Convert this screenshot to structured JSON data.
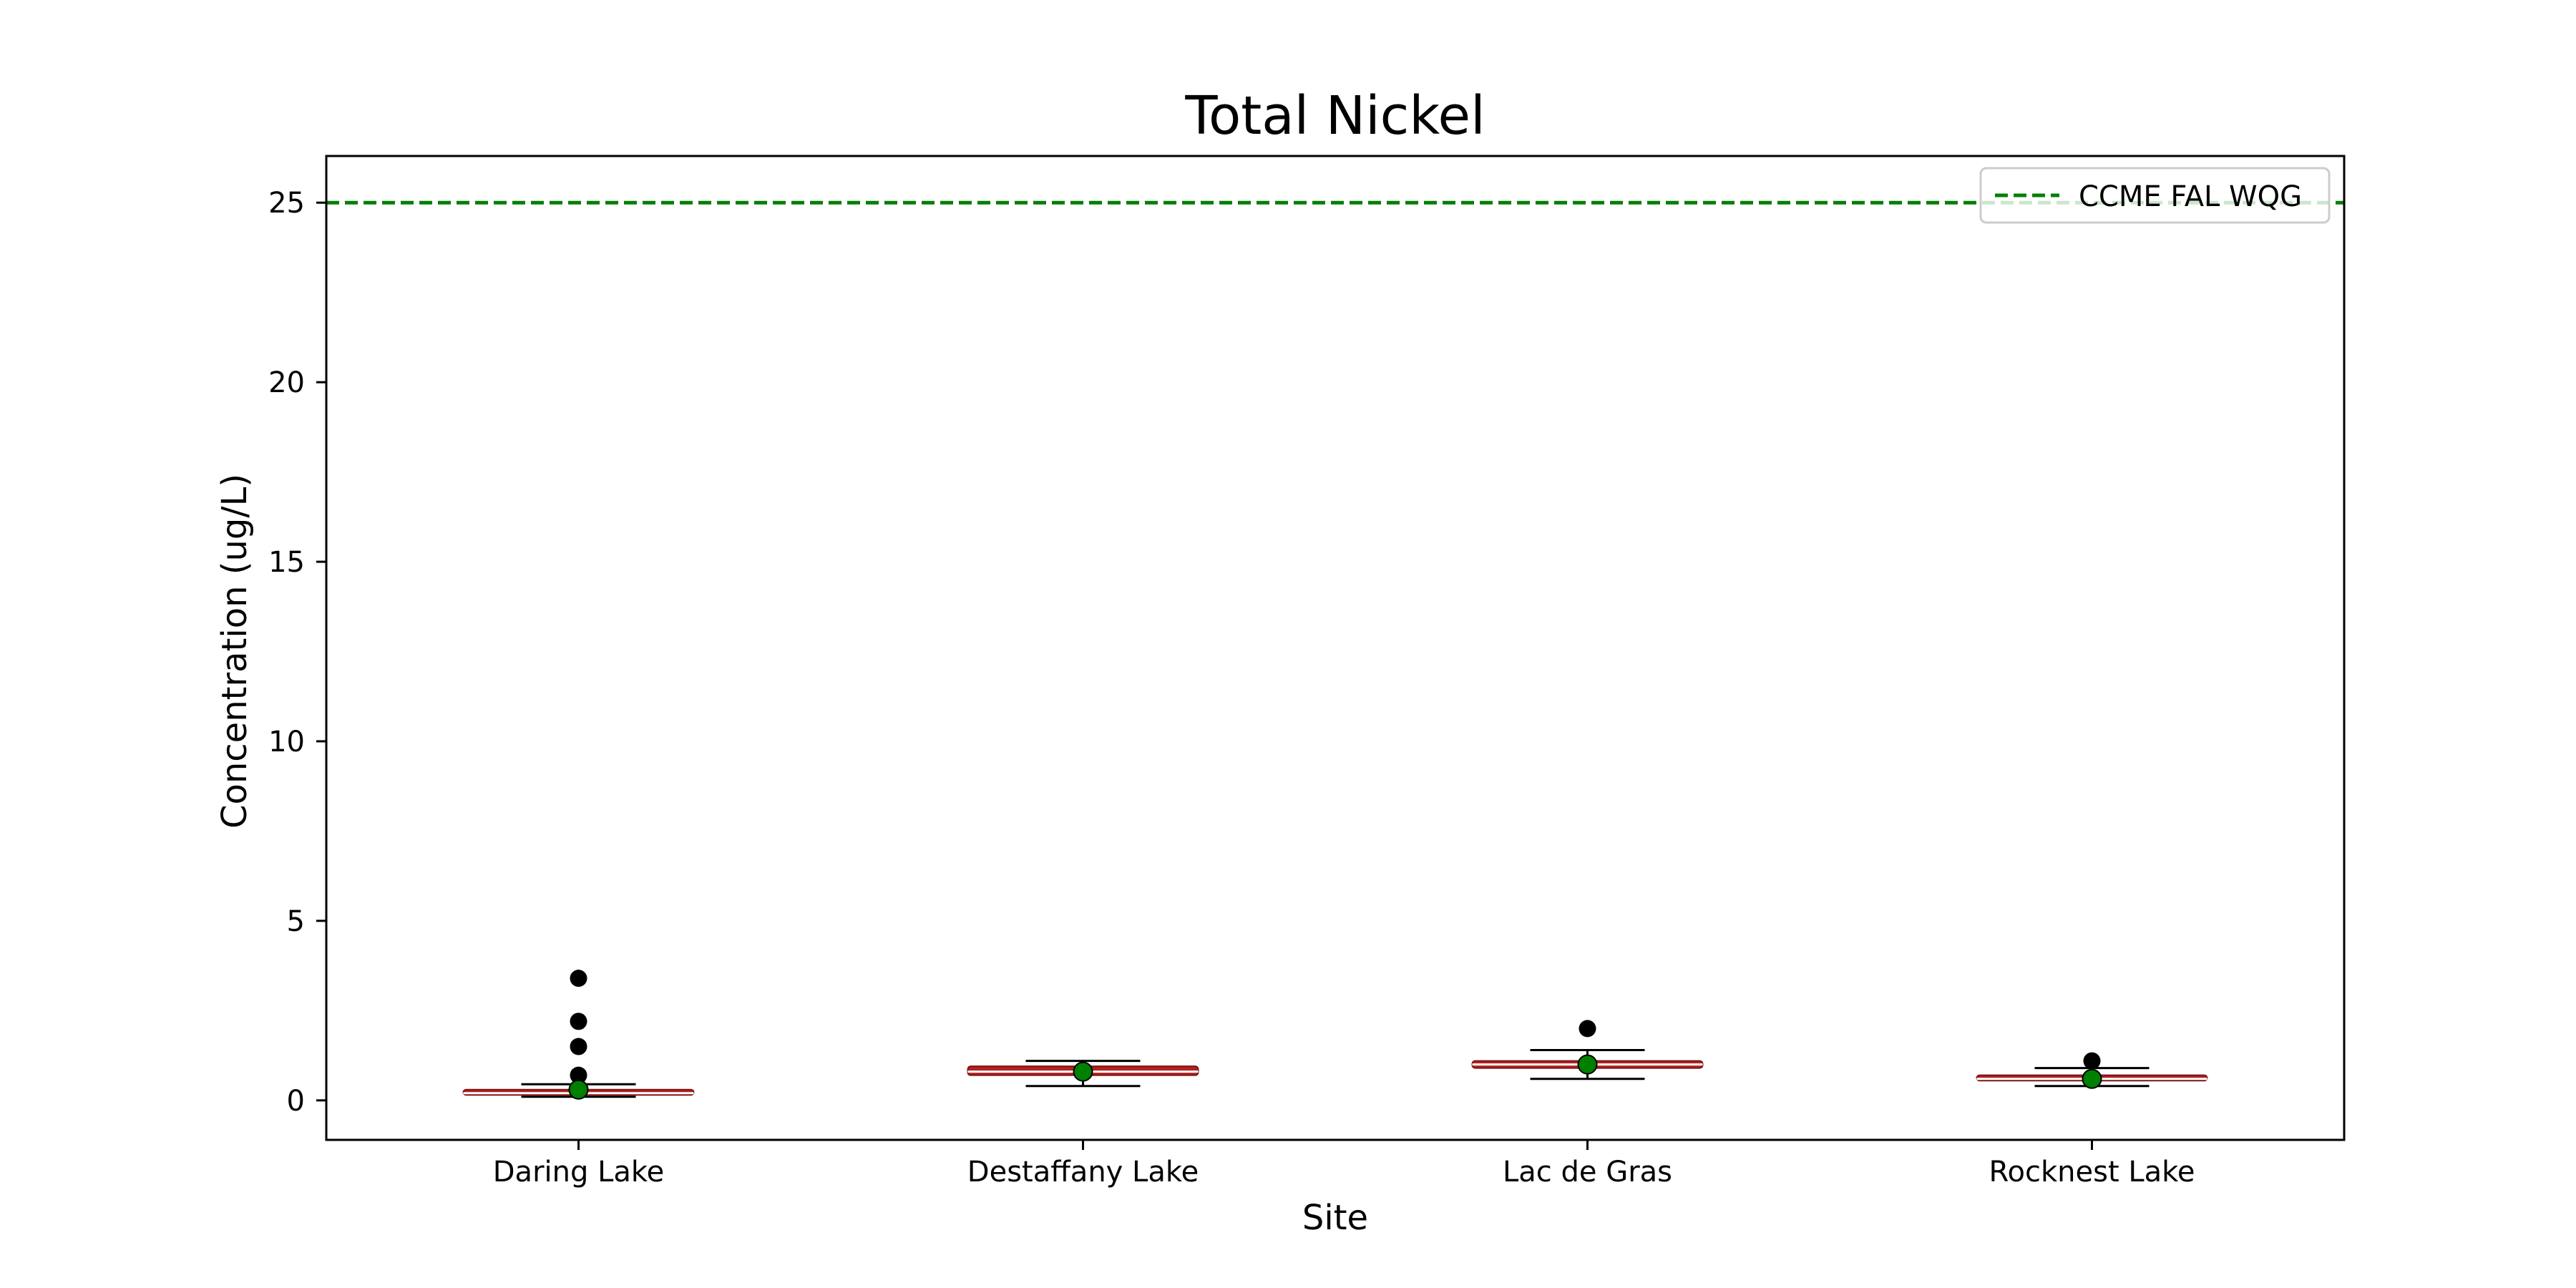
{
  "chart_data": {
    "type": "box",
    "title": "Total Nickel",
    "xlabel": "Site",
    "ylabel": "Concentration (ug/L)",
    "ylim": [
      -1.1,
      26.3
    ],
    "yticks": [
      0,
      5,
      10,
      15,
      20,
      25
    ],
    "grid": false,
    "legend_position": "top-right",
    "guideline": {
      "name": "CCME FAL WQG",
      "value": 25,
      "color": "#008000",
      "style": "dashed"
    },
    "categories": [
      "Daring Lake",
      "Destaffany Lake",
      "Lac de Gras",
      "Rocknest Lake"
    ],
    "boxes": [
      {
        "whisker_low": 0.1,
        "q1": 0.15,
        "median": 0.2,
        "q3": 0.3,
        "whisker_high": 0.45,
        "mean": 0.3,
        "outliers": [
          3.4,
          2.2,
          1.5,
          0.7
        ]
      },
      {
        "whisker_low": 0.4,
        "q1": 0.7,
        "median": 0.8,
        "q3": 0.95,
        "whisker_high": 1.1,
        "mean": 0.8,
        "outliers": []
      },
      {
        "whisker_low": 0.6,
        "q1": 0.9,
        "median": 1.0,
        "q3": 1.1,
        "whisker_high": 1.4,
        "mean": 1.0,
        "outliers": [
          2.0
        ]
      },
      {
        "whisker_low": 0.4,
        "q1": 0.55,
        "median": 0.6,
        "q3": 0.7,
        "whisker_high": 0.9,
        "mean": 0.6,
        "outliers": [
          1.1
        ]
      }
    ],
    "colors": {
      "box": "#b22222",
      "mean_marker": "#008000",
      "outlier": "#000000",
      "axis": "#000000"
    }
  }
}
